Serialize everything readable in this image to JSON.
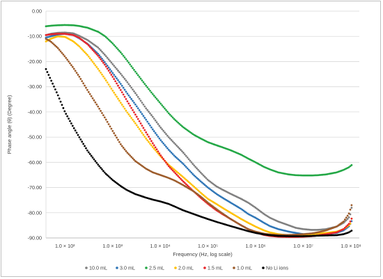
{
  "chart_data": {
    "type": "scatter",
    "xlabel": "Frequency (Hz, log scale)",
    "ylabel": "Phase angle (θ) (Degree)",
    "x_scale": "log",
    "xlim": [
      40,
      150000000
    ],
    "ylim": [
      -90,
      0
    ],
    "grid": "horizontal",
    "legend_position": "bottom",
    "x_ticks": [
      {
        "value": 100,
        "label": "1.0 × 10²"
      },
      {
        "value": 1000,
        "label": "1.0 × 10³"
      },
      {
        "value": 10000,
        "label": "1.0 × 10⁴"
      },
      {
        "value": 100000,
        "label": "1.0 × 10⁵"
      },
      {
        "value": 1000000,
        "label": "1.0 × 10⁶"
      },
      {
        "value": 10000000,
        "label": "1.0 × 10⁷"
      },
      {
        "value": 100000000,
        "label": "1.0 × 10⁸"
      }
    ],
    "y_ticks": [
      {
        "value": 0,
        "label": "0.00"
      },
      {
        "value": -10,
        "label": "-10.00"
      },
      {
        "value": -20,
        "label": "-20.00"
      },
      {
        "value": -30,
        "label": "-30.00"
      },
      {
        "value": -40,
        "label": "-40.00"
      },
      {
        "value": -50,
        "label": "-50.00"
      },
      {
        "value": -60,
        "label": "-60.00"
      },
      {
        "value": -70,
        "label": "-70.00"
      },
      {
        "value": -80,
        "label": "-80.00"
      },
      {
        "value": -90,
        "label": "-90.00"
      }
    ],
    "x_sample": [
      40,
      50,
      70,
      100,
      150,
      200,
      300,
      500,
      700,
      1000,
      1500,
      2000,
      3000,
      5000,
      7000,
      10000,
      15000,
      20000,
      30000,
      50000,
      70000,
      100000,
      150000,
      200000,
      300000,
      500000,
      700000,
      1000000,
      1500000,
      2000000,
      3000000,
      5000000,
      7000000,
      10000000,
      15000000,
      20000000,
      30000000,
      50000000,
      70000000,
      90000000,
      100000000,
      105000000,
      110000000
    ],
    "series": [
      {
        "name": "10.0 mL",
        "color": "#7f7f7f",
        "values": [
          -9.5,
          -9.0,
          -8.6,
          -8.5,
          -8.8,
          -9.8,
          -11.5,
          -14.5,
          -17.5,
          -21,
          -25,
          -28,
          -32.5,
          -38.5,
          -42,
          -46,
          -50,
          -52.5,
          -56,
          -61,
          -64,
          -67,
          -69.5,
          -70.8,
          -72.5,
          -74.5,
          -76,
          -78,
          -80.5,
          -82,
          -83.5,
          -85,
          -86,
          -86.5,
          -86.8,
          -86.8,
          -86.5,
          -85.5,
          -84,
          -82,
          -80,
          -77,
          -74
        ]
      },
      {
        "name": "3.0 mL",
        "color": "#2e75b6",
        "values": [
          -10.5,
          -10,
          -9.3,
          -9,
          -9.5,
          -10.8,
          -13,
          -17,
          -20.5,
          -24.5,
          -29,
          -32.5,
          -37,
          -43,
          -47,
          -51,
          -55,
          -57.5,
          -60.5,
          -65,
          -67.5,
          -70,
          -72.5,
          -74,
          -76,
          -78.5,
          -80.5,
          -82,
          -84,
          -85.3,
          -86.5,
          -87.5,
          -88,
          -88.5,
          -88.7,
          -88.7,
          -88.5,
          -88,
          -87,
          -85.5,
          -84,
          -83,
          -82.5
        ]
      },
      {
        "name": "2.5 mL",
        "color": "#22a745",
        "values": [
          -6,
          -5.8,
          -5.6,
          -5.5,
          -5.6,
          -5.9,
          -6.6,
          -8.2,
          -10,
          -12.8,
          -16.5,
          -19.5,
          -24,
          -29.5,
          -33,
          -36.5,
          -40.5,
          -43,
          -46,
          -49,
          -50.5,
          -52,
          -53.2,
          -54,
          -55.2,
          -57,
          -58.5,
          -60,
          -61.8,
          -62.8,
          -64,
          -64.8,
          -65.1,
          -65.2,
          -65.2,
          -65.1,
          -64.8,
          -64,
          -63,
          -62,
          -61.3,
          -61,
          -61
        ]
      },
      {
        "name": "2.0 mL",
        "color": "#ffc000",
        "values": [
          -12,
          -11,
          -10,
          -10.2,
          -12,
          -14,
          -17.5,
          -23,
          -27,
          -31.5,
          -36.5,
          -40,
          -44.5,
          -50.5,
          -54,
          -57.5,
          -61,
          -63,
          -65.8,
          -69.5,
          -72,
          -74.5,
          -76.5,
          -78,
          -80,
          -82.5,
          -84,
          -85.5,
          -87,
          -87.8,
          -88.5,
          -89,
          -89,
          -88.8,
          -88.5,
          -88.3,
          -88,
          -87.5,
          -86.5,
          -85,
          -84,
          -81.5,
          -79
        ]
      },
      {
        "name": "1.5 mL",
        "color": "#e8252a",
        "values": [
          -9.5,
          -9.2,
          -9,
          -9,
          -9.5,
          -10.6,
          -13.2,
          -17.8,
          -21.5,
          -26,
          -31.5,
          -35.5,
          -41,
          -48,
          -52.5,
          -57,
          -61.5,
          -64,
          -67.5,
          -71.5,
          -74,
          -76.5,
          -79,
          -80.5,
          -82.5,
          -85,
          -86.5,
          -87.8,
          -88.8,
          -89.2,
          -89.5,
          -89.6,
          -89.6,
          -89.5,
          -89.3,
          -89,
          -88.5,
          -87.8,
          -86.5,
          -84.5,
          -83,
          -82,
          -80
        ]
      },
      {
        "name": "1.0 mL",
        "color": "#9c5b2a",
        "values": [
          -11,
          -12,
          -14.5,
          -18,
          -22.5,
          -26,
          -31.5,
          -38,
          -42.5,
          -47.5,
          -53,
          -56,
          -59.5,
          -62.5,
          -64,
          -65,
          -66.2,
          -67.2,
          -69,
          -71.5,
          -73.5,
          -76,
          -78.5,
          -80.2,
          -82.5,
          -85,
          -86.5,
          -87.5,
          -88.3,
          -88.6,
          -88.8,
          -88.8,
          -88.7,
          -88.5,
          -88.2,
          -87.8,
          -87,
          -85.5,
          -83.5,
          -80.5,
          -78,
          -76.5,
          -76.5
        ]
      },
      {
        "name": "No Li ions",
        "color": "#000000",
        "values": [
          -23,
          -27,
          -33,
          -40,
          -46,
          -50,
          -55.5,
          -61,
          -64.3,
          -67,
          -69.5,
          -71,
          -72.6,
          -74,
          -74.8,
          -75.5,
          -76.5,
          -77.5,
          -79,
          -80.5,
          -81.5,
          -82.5,
          -83.6,
          -84.3,
          -85.3,
          -86.5,
          -87.3,
          -88,
          -88.6,
          -88.9,
          -89.2,
          -89.3,
          -89.3,
          -89.3,
          -89.2,
          -89.1,
          -89,
          -88.9,
          -88.5,
          -87.8,
          -87.3,
          -87,
          -86.8
        ]
      }
    ]
  }
}
